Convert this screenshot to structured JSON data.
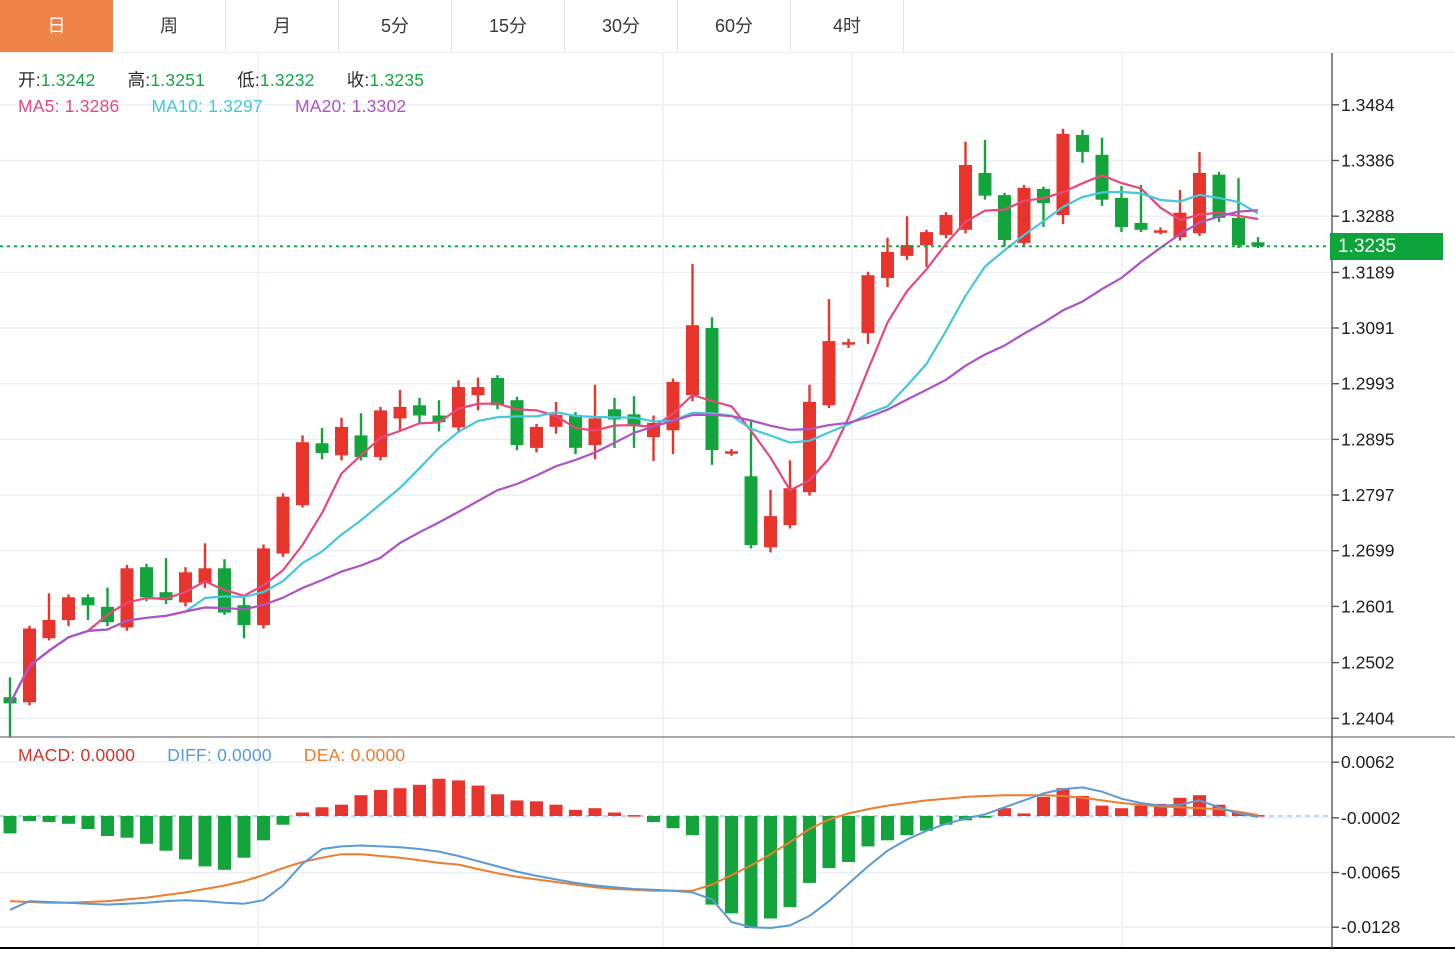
{
  "toolbar": {
    "tabs": [
      {
        "label": "日",
        "active": true
      },
      {
        "label": "周",
        "active": false
      },
      {
        "label": "月",
        "active": false
      },
      {
        "label": "5分",
        "active": false
      },
      {
        "label": "15分",
        "active": false
      },
      {
        "label": "30分",
        "active": false
      },
      {
        "label": "60分",
        "active": false
      },
      {
        "label": "4时",
        "active": false
      }
    ]
  },
  "price_legend": {
    "open_label": "开:",
    "open": "1.3242",
    "high_label": "高:",
    "high": "1.3251",
    "low_label": "低:",
    "low": "1.3232",
    "close_label": "收:",
    "close": "1.3235",
    "ma5_label": "MA5:",
    "ma5": "1.3286",
    "ma10_label": "MA10:",
    "ma10": "1.3297",
    "ma20_label": "MA20:",
    "ma20": "1.3302"
  },
  "macd_legend": {
    "macd_label": "MACD:",
    "macd": "0.0000",
    "diff_label": "DIFF:",
    "diff": "0.0000",
    "dea_label": "DEA:",
    "dea": "0.0000"
  },
  "colors": {
    "up": "#E7352D",
    "down": "#14A43C",
    "badge": "#0CA43B",
    "dotted_line": "#0CA43B",
    "ma5": "#E8487C",
    "ma10": "#45C7DC",
    "ma20": "#AE52C6",
    "diff_line": "#5B9BD5",
    "dea_line": "#ED7D31",
    "macd_text": "#D5342B",
    "tab_active_bg": "#EF8449",
    "grid": "#E9EFF4",
    "axis_text": "#1f1f1f",
    "value_green": "#16A546",
    "zero_dash": "#A3CBE9",
    "pane_divider": "#777777",
    "axis_line": "#555555",
    "bottom_border": "#000000"
  },
  "chart_data": {
    "type": "candlestick+macd",
    "title": "",
    "legend_position": "top-left",
    "price_axis": {
      "ticks": [
        1.3484,
        1.3386,
        1.3288,
        1.3189,
        1.3091,
        1.2993,
        1.2895,
        1.2797,
        1.2699,
        1.2601,
        1.2502,
        1.2404
      ],
      "ylim": [
        1.2371,
        1.3577
      ],
      "last_price": 1.3235,
      "last_price_label": "1.3235"
    },
    "macd_axis": {
      "ticks": [
        0.0062,
        -0.0002,
        -0.0065,
        -0.0128
      ],
      "ylim": [
        -0.0152,
        0.0091
      ]
    },
    "ma_periods": [
      5,
      10,
      20
    ],
    "candles_ohlc": [
      [
        1.2441,
        1.2476,
        1.237,
        1.243
      ],
      [
        1.2432,
        1.2567,
        1.2427,
        1.2562
      ],
      [
        1.2545,
        1.2624,
        1.2541,
        1.2577
      ],
      [
        1.2577,
        1.2622,
        1.2566,
        1.2617
      ],
      [
        1.2617,
        1.2622,
        1.2577,
        1.2603
      ],
      [
        1.26,
        1.2634,
        1.2566,
        1.2573
      ],
      [
        1.2564,
        1.2674,
        1.2558,
        1.2668
      ],
      [
        1.267,
        1.2676,
        1.261,
        1.2617
      ],
      [
        1.2626,
        1.2686,
        1.2605,
        1.2612
      ],
      [
        1.2608,
        1.267,
        1.2601,
        1.2661
      ],
      [
        1.2642,
        1.2712,
        1.2633,
        1.2668
      ],
      [
        1.2668,
        1.2684,
        1.2586,
        1.259
      ],
      [
        1.2603,
        1.2617,
        1.2545,
        1.2568
      ],
      [
        1.2568,
        1.271,
        1.2562,
        1.2703
      ],
      [
        1.2694,
        1.28,
        1.2688,
        1.2794
      ],
      [
        1.2779,
        1.2902,
        1.2775,
        1.289
      ],
      [
        1.2888,
        1.2915,
        1.286,
        1.2871
      ],
      [
        1.2867,
        1.2933,
        1.2858,
        1.2917
      ],
      [
        1.2902,
        1.2941,
        1.2858,
        1.2864
      ],
      [
        1.2864,
        1.2952,
        1.2858,
        1.2946
      ],
      [
        1.2932,
        1.2982,
        1.2909,
        1.2952
      ],
      [
        1.2955,
        1.2968,
        1.2923,
        1.2937
      ],
      [
        1.2937,
        1.2964,
        1.2909,
        1.2925
      ],
      [
        1.2916,
        1.2999,
        1.2909,
        1.2987
      ],
      [
        1.2973,
        1.3004,
        1.2946,
        1.2987
      ],
      [
        1.3003,
        1.3008,
        1.2948,
        1.2955
      ],
      [
        1.2964,
        1.297,
        1.2876,
        1.2885
      ],
      [
        1.288,
        1.2922,
        1.2872,
        1.2917
      ],
      [
        1.2917,
        1.2961,
        1.2905,
        1.2938
      ],
      [
        1.2938,
        1.2943,
        1.2869,
        1.288
      ],
      [
        1.2885,
        1.2991,
        1.286,
        1.2932
      ],
      [
        1.2948,
        1.2968,
        1.288,
        1.293
      ],
      [
        1.2939,
        1.2971,
        1.288,
        1.292
      ],
      [
        1.2899,
        1.2937,
        1.2857,
        1.2924
      ],
      [
        1.2911,
        1.3002,
        1.2869,
        1.2996
      ],
      [
        1.2973,
        1.3204,
        1.2962,
        1.3096
      ],
      [
        1.3091,
        1.311,
        1.285,
        1.2876
      ],
      [
        1.287,
        1.2878,
        1.2866,
        1.2874
      ],
      [
        1.283,
        1.2927,
        1.2703,
        1.2709
      ],
      [
        1.2705,
        1.2806,
        1.2696,
        1.276
      ],
      [
        1.2744,
        1.2858,
        1.2738,
        1.2809
      ],
      [
        1.2802,
        1.2991,
        1.2796,
        1.2961
      ],
      [
        1.2955,
        1.3142,
        1.295,
        1.3068
      ],
      [
        1.3062,
        1.3072,
        1.3056,
        1.3066
      ],
      [
        1.3082,
        1.319,
        1.3063,
        1.3184
      ],
      [
        1.3179,
        1.325,
        1.3163,
        1.3225
      ],
      [
        1.3218,
        1.3288,
        1.3211,
        1.3237
      ],
      [
        1.3237,
        1.3264,
        1.3199,
        1.326
      ],
      [
        1.3255,
        1.3295,
        1.3249,
        1.329
      ],
      [
        1.3264,
        1.3419,
        1.3258,
        1.3378
      ],
      [
        1.3364,
        1.3422,
        1.3317,
        1.3324
      ],
      [
        1.3325,
        1.3329,
        1.3234,
        1.3246
      ],
      [
        1.3241,
        1.3343,
        1.3235,
        1.3338
      ],
      [
        1.3336,
        1.334,
        1.3269,
        1.3311
      ],
      [
        1.329,
        1.3442,
        1.3274,
        1.3433
      ],
      [
        1.3431,
        1.344,
        1.3382,
        1.3401
      ],
      [
        1.3396,
        1.3426,
        1.3306,
        1.3317
      ],
      [
        1.332,
        1.3341,
        1.326,
        1.3269
      ],
      [
        1.3276,
        1.3343,
        1.326,
        1.3264
      ],
      [
        1.3262,
        1.3268,
        1.3256,
        1.3263
      ],
      [
        1.3251,
        1.3334,
        1.3245,
        1.3294
      ],
      [
        1.3258,
        1.3401,
        1.3253,
        1.3364
      ],
      [
        1.3361,
        1.3366,
        1.3278,
        1.3285
      ],
      [
        1.3285,
        1.3355,
        1.3232,
        1.3237
      ],
      [
        1.3242,
        1.3251,
        1.3232,
        1.3235
      ]
    ],
    "macd": {
      "hist": [
        -0.002,
        -0.0006,
        -0.0007,
        -0.0009,
        -0.0015,
        -0.0023,
        -0.0025,
        -0.0032,
        -0.004,
        -0.005,
        -0.0058,
        -0.0062,
        -0.0048,
        -0.0028,
        -0.001,
        0.0004,
        0.001,
        0.0013,
        0.0024,
        0.003,
        0.0032,
        0.0036,
        0.0043,
        0.0041,
        0.0035,
        0.0025,
        0.0018,
        0.0017,
        0.0013,
        0.0007,
        0.0009,
        0.0004,
        0.0001,
        -0.0007,
        -0.0014,
        -0.0022,
        -0.0102,
        -0.0112,
        -0.0129,
        -0.0118,
        -0.0105,
        -0.0077,
        -0.006,
        -0.0053,
        -0.0035,
        -0.0028,
        -0.0022,
        -0.0017,
        -0.001,
        -0.0005,
        -0.0002,
        0.0009,
        0.0003,
        0.0022,
        0.0032,
        0.0023,
        0.0012,
        0.0009,
        0.0012,
        0.0014,
        0.0021,
        0.0024,
        0.0013,
        0.0005,
        0.0001
      ],
      "diff": [
        -0.0108,
        -0.0098,
        -0.0099,
        -0.01,
        -0.0101,
        -0.0102,
        -0.0101,
        -0.01,
        -0.0098,
        -0.0097,
        -0.0098,
        -0.01,
        -0.0101,
        -0.0097,
        -0.008,
        -0.0055,
        -0.0038,
        -0.0035,
        -0.0034,
        -0.0035,
        -0.0036,
        -0.0038,
        -0.0041,
        -0.0046,
        -0.0052,
        -0.0058,
        -0.0064,
        -0.0069,
        -0.0073,
        -0.0077,
        -0.008,
        -0.0082,
        -0.0084,
        -0.0085,
        -0.0086,
        -0.0088,
        -0.0096,
        -0.0122,
        -0.0128,
        -0.0129,
        -0.0126,
        -0.0115,
        -0.0098,
        -0.0078,
        -0.0058,
        -0.004,
        -0.0027,
        -0.0017,
        -0.0009,
        -0.0003,
        0.0002,
        0.001,
        0.0018,
        0.0026,
        0.0031,
        0.0033,
        0.0028,
        0.002,
        0.0015,
        0.0012,
        0.0013,
        0.0018,
        0.001,
        0.0003,
        -0.0001
      ],
      "dea": [
        -0.0098,
        -0.0099,
        -0.01,
        -0.01,
        -0.0099,
        -0.0098,
        -0.0096,
        -0.0094,
        -0.0091,
        -0.0088,
        -0.0084,
        -0.008,
        -0.0075,
        -0.0068,
        -0.006,
        -0.0053,
        -0.0048,
        -0.0044,
        -0.0044,
        -0.0046,
        -0.0048,
        -0.0051,
        -0.0054,
        -0.0056,
        -0.0061,
        -0.0066,
        -0.007,
        -0.0073,
        -0.0076,
        -0.0079,
        -0.0082,
        -0.0084,
        -0.0085,
        -0.0086,
        -0.0086,
        -0.0086,
        -0.0079,
        -0.0068,
        -0.0057,
        -0.0044,
        -0.003,
        -0.0015,
        -0.0004,
        0.0003,
        0.0008,
        0.0012,
        0.0015,
        0.0018,
        0.002,
        0.0022,
        0.0023,
        0.0024,
        0.0024,
        0.0024,
        0.0023,
        0.0021,
        0.0018,
        0.0015,
        0.0013,
        0.0011,
        0.001,
        0.0009,
        0.0008,
        0.0005,
        0.0001
      ]
    },
    "layout_hints": {
      "grid": true,
      "vertical_gridlines_x": [
        258,
        663,
        852,
        1122
      ]
    }
  }
}
